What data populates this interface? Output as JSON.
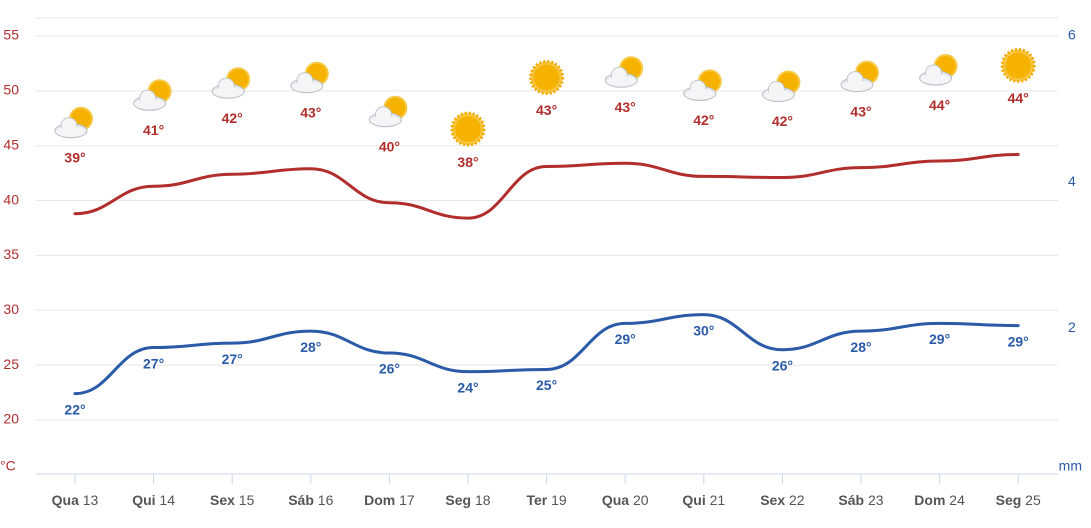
{
  "chart_data": {
    "type": "line",
    "categories": [
      "Qua 13",
      "Qui 14",
      "Sex 15",
      "Sáb 16",
      "Dom 17",
      "Seg 18",
      "Ter 19",
      "Qua 20",
      "Qui 21",
      "Sex 22",
      "Sáb 23",
      "Dom 24",
      "Seg 25"
    ],
    "icons": [
      "partly-cloudy",
      "partly-cloudy",
      "partly-cloudy",
      "partly-cloudy",
      "partly-cloudy",
      "sunny",
      "sunny",
      "partly-cloudy",
      "partly-cloudy",
      "partly-cloudy",
      "partly-cloudy",
      "partly-cloudy",
      "sunny"
    ],
    "series": [
      {
        "color": "#b22e2c",
        "values": [
          38.8,
          41.3,
          42.4,
          42.9,
          39.8,
          38.4,
          43.1,
          43.4,
          42.2,
          42.1,
          43.0,
          43.6,
          44.2
        ],
        "value_labels": [
          "39°",
          "41°",
          "42°",
          "43°",
          "40°",
          "38°",
          "43°",
          "43°",
          "42°",
          "42°",
          "43°",
          "44°",
          "44°"
        ]
      },
      {
        "color": "#2b5ba8",
        "values": [
          22.4,
          26.6,
          27.0,
          28.1,
          26.1,
          24.4,
          24.6,
          28.8,
          29.6,
          26.4,
          28.1,
          28.8,
          28.6
        ],
        "value_labels": [
          "22°",
          "27°",
          "27°",
          "28°",
          "26°",
          "24°",
          "25°",
          "29°",
          "30°",
          "26°",
          "28°",
          "29°",
          "29°"
        ]
      }
    ],
    "ylabel": "°C",
    "ylim": [
      15,
      55
    ],
    "yticks": [
      20,
      25,
      30,
      35,
      40,
      45,
      50,
      55
    ],
    "y2label": "mm",
    "y2lim": [
      0,
      6
    ],
    "y2ticks": [
      2,
      4,
      6
    ],
    "grid": true
  }
}
